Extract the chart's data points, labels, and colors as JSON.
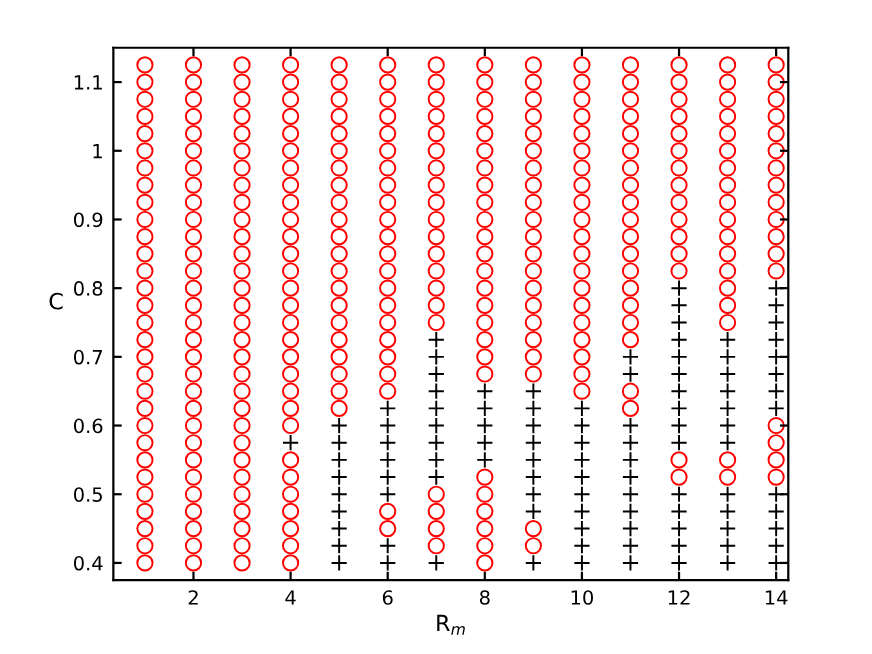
{
  "chart_data": {
    "type": "scatter",
    "xlabel": "R$_{m}$",
    "ylabel": "C",
    "xlim": [
      0.35,
      14.25
    ],
    "ylim": [
      0.375,
      1.15
    ],
    "xticks": [
      2,
      4,
      6,
      8,
      10,
      12,
      14
    ],
    "yticks": [
      0.4,
      0.5,
      0.6,
      0.7,
      0.8,
      0.9,
      1,
      1.1
    ],
    "grid": false,
    "legend": false,
    "series": [
      {
        "color": "#ff0000",
        "marker": "circle",
        "x": [
          1,
          1,
          1,
          1,
          1,
          1,
          1,
          1,
          1,
          1,
          1,
          1,
          1,
          1,
          1,
          1,
          1,
          1,
          1,
          1,
          1,
          1,
          1,
          1,
          1,
          1,
          1,
          1,
          1,
          1,
          2,
          2,
          2,
          2,
          2,
          2,
          2,
          2,
          2,
          2,
          2,
          2,
          2,
          2,
          2,
          2,
          2,
          2,
          2,
          2,
          2,
          2,
          2,
          2,
          2,
          2,
          2,
          2,
          2,
          2,
          3,
          3,
          3,
          3,
          3,
          3,
          3,
          3,
          3,
          3,
          3,
          3,
          3,
          3,
          3,
          3,
          3,
          3,
          3,
          3,
          3,
          3,
          3,
          3,
          3,
          3,
          3,
          3,
          3,
          3,
          4,
          4,
          4,
          4,
          4,
          4,
          4,
          4,
          4,
          4,
          4,
          4,
          4,
          4,
          4,
          4,
          4,
          4,
          4,
          4,
          4,
          4,
          4,
          4,
          4,
          4,
          4,
          4,
          4,
          5,
          5,
          5,
          5,
          5,
          5,
          5,
          5,
          5,
          5,
          5,
          5,
          5,
          5,
          5,
          5,
          5,
          5,
          5,
          5,
          5,
          6,
          6,
          6,
          6,
          6,
          6,
          6,
          6,
          6,
          6,
          6,
          6,
          6,
          6,
          6,
          6,
          6,
          6,
          6,
          6,
          6,
          6,
          7,
          7,
          7,
          7,
          7,
          7,
          7,
          7,
          7,
          7,
          7,
          7,
          7,
          7,
          7,
          7,
          7,
          7,
          7,
          7,
          8,
          8,
          8,
          8,
          8,
          8,
          8,
          8,
          8,
          8,
          8,
          8,
          8,
          8,
          8,
          8,
          8,
          8,
          8,
          8,
          8,
          8,
          8,
          8,
          8,
          9,
          9,
          9,
          9,
          9,
          9,
          9,
          9,
          9,
          9,
          9,
          9,
          9,
          9,
          9,
          9,
          9,
          9,
          9,
          9,
          9,
          10,
          10,
          10,
          10,
          10,
          10,
          10,
          10,
          10,
          10,
          10,
          10,
          10,
          10,
          10,
          10,
          10,
          10,
          10,
          10,
          11,
          11,
          11,
          11,
          11,
          11,
          11,
          11,
          11,
          11,
          11,
          11,
          11,
          11,
          11,
          11,
          11,
          11,
          11,
          12,
          12,
          12,
          12,
          12,
          12,
          12,
          12,
          12,
          12,
          12,
          12,
          12,
          12,
          12,
          13,
          13,
          13,
          13,
          13,
          13,
          13,
          13,
          13,
          13,
          13,
          13,
          13,
          13,
          13,
          13,
          13,
          13,
          14,
          14,
          14,
          14,
          14,
          14,
          14,
          14,
          14,
          14,
          14,
          14,
          14,
          14,
          14,
          14,
          14
        ],
        "values": [
          0.4,
          0.425,
          0.45,
          0.475,
          0.5,
          0.525,
          0.55,
          0.575,
          0.6,
          0.625,
          0.65,
          0.675,
          0.7,
          0.725,
          0.75,
          0.775,
          0.8,
          0.825,
          0.85,
          0.875,
          0.9,
          0.925,
          0.95,
          0.975,
          1,
          1.025,
          1.05,
          1.075,
          1.1,
          1.125,
          0.4,
          0.425,
          0.45,
          0.475,
          0.5,
          0.525,
          0.55,
          0.575,
          0.6,
          0.625,
          0.65,
          0.675,
          0.7,
          0.725,
          0.75,
          0.775,
          0.8,
          0.825,
          0.85,
          0.875,
          0.9,
          0.925,
          0.95,
          0.975,
          1,
          1.025,
          1.05,
          1.075,
          1.1,
          1.125,
          0.4,
          0.425,
          0.45,
          0.475,
          0.5,
          0.525,
          0.55,
          0.575,
          0.6,
          0.625,
          0.65,
          0.675,
          0.7,
          0.725,
          0.75,
          0.775,
          0.8,
          0.825,
          0.85,
          0.875,
          0.9,
          0.925,
          0.95,
          0.975,
          1,
          1.025,
          1.05,
          1.075,
          1.1,
          1.125,
          0.4,
          0.425,
          0.45,
          0.475,
          0.5,
          0.525,
          0.55,
          0.6,
          0.625,
          0.65,
          0.675,
          0.7,
          0.725,
          0.75,
          0.775,
          0.8,
          0.825,
          0.85,
          0.875,
          0.9,
          0.925,
          0.95,
          0.975,
          1,
          1.025,
          1.05,
          1.075,
          1.1,
          1.125,
          0.625,
          0.65,
          0.675,
          0.7,
          0.725,
          0.75,
          0.775,
          0.8,
          0.825,
          0.85,
          0.875,
          0.9,
          0.925,
          0.95,
          0.975,
          1,
          1.025,
          1.05,
          1.075,
          1.1,
          1.125,
          0.45,
          0.475,
          0.65,
          0.675,
          0.7,
          0.725,
          0.75,
          0.775,
          0.8,
          0.825,
          0.85,
          0.875,
          0.9,
          0.925,
          0.95,
          0.975,
          1,
          1.025,
          1.05,
          1.075,
          1.1,
          1.125,
          0.425,
          0.45,
          0.475,
          0.5,
          0.75,
          0.775,
          0.8,
          0.825,
          0.85,
          0.875,
          0.9,
          0.925,
          0.95,
          0.975,
          1,
          1.025,
          1.05,
          1.075,
          1.1,
          1.125,
          0.4,
          0.425,
          0.45,
          0.475,
          0.5,
          0.525,
          0.675,
          0.7,
          0.725,
          0.75,
          0.775,
          0.8,
          0.825,
          0.85,
          0.875,
          0.9,
          0.925,
          0.95,
          0.975,
          1,
          1.025,
          1.05,
          1.075,
          1.1,
          1.125,
          0.425,
          0.45,
          0.675,
          0.7,
          0.725,
          0.75,
          0.775,
          0.8,
          0.825,
          0.85,
          0.875,
          0.9,
          0.925,
          0.95,
          0.975,
          1,
          1.025,
          1.05,
          1.075,
          1.1,
          1.125,
          0.65,
          0.675,
          0.7,
          0.725,
          0.75,
          0.775,
          0.8,
          0.825,
          0.85,
          0.875,
          0.9,
          0.925,
          0.95,
          0.975,
          1,
          1.025,
          1.05,
          1.075,
          1.1,
          1.125,
          0.625,
          0.65,
          0.725,
          0.75,
          0.775,
          0.8,
          0.825,
          0.85,
          0.875,
          0.9,
          0.925,
          0.95,
          0.975,
          1,
          1.025,
          1.05,
          1.075,
          1.1,
          1.125,
          0.525,
          0.55,
          0.825,
          0.85,
          0.875,
          0.9,
          0.925,
          0.95,
          0.975,
          1,
          1.025,
          1.05,
          1.075,
          1.1,
          1.125,
          0.525,
          0.55,
          0.75,
          0.775,
          0.8,
          0.825,
          0.85,
          0.875,
          0.9,
          0.925,
          0.95,
          0.975,
          1,
          1.025,
          1.05,
          1.075,
          1.1,
          1.125,
          0.525,
          0.55,
          0.575,
          0.6,
          0.825,
          0.85,
          0.875,
          0.9,
          0.925,
          0.95,
          0.975,
          1,
          1.025,
          1.05,
          1.075,
          1.1,
          1.125
        ]
      },
      {
        "color": "#000000",
        "marker": "cross",
        "x": [
          4,
          5,
          5,
          5,
          5,
          5,
          5,
          5,
          5,
          5,
          6,
          6,
          6,
          6,
          6,
          6,
          6,
          6,
          7,
          7,
          7,
          7,
          7,
          7,
          7,
          7,
          7,
          7,
          8,
          8,
          8,
          8,
          8,
          9,
          9,
          9,
          9,
          9,
          9,
          9,
          9,
          9,
          10,
          10,
          10,
          10,
          10,
          10,
          10,
          10,
          10,
          10,
          11,
          11,
          11,
          11,
          11,
          11,
          11,
          11,
          11,
          11,
          11,
          12,
          12,
          12,
          12,
          12,
          12,
          12,
          12,
          12,
          12,
          12,
          12,
          12,
          12,
          12,
          13,
          13,
          13,
          13,
          13,
          13,
          13,
          13,
          13,
          13,
          13,
          13,
          14,
          14,
          14,
          14,
          14,
          14,
          14,
          14,
          14,
          14,
          14,
          14,
          14
        ],
        "values": [
          0.575,
          0.4,
          0.425,
          0.45,
          0.475,
          0.5,
          0.525,
          0.55,
          0.575,
          0.6,
          0.4,
          0.425,
          0.5,
          0.525,
          0.55,
          0.575,
          0.6,
          0.625,
          0.4,
          0.525,
          0.55,
          0.575,
          0.6,
          0.625,
          0.65,
          0.675,
          0.7,
          0.725,
          0.55,
          0.575,
          0.6,
          0.625,
          0.65,
          0.4,
          0.475,
          0.5,
          0.525,
          0.55,
          0.575,
          0.6,
          0.625,
          0.65,
          0.4,
          0.425,
          0.45,
          0.475,
          0.5,
          0.525,
          0.55,
          0.575,
          0.6,
          0.625,
          0.4,
          0.425,
          0.45,
          0.475,
          0.5,
          0.525,
          0.55,
          0.575,
          0.6,
          0.675,
          0.7,
          0.4,
          0.425,
          0.45,
          0.475,
          0.5,
          0.575,
          0.6,
          0.625,
          0.65,
          0.675,
          0.7,
          0.725,
          0.75,
          0.775,
          0.8,
          0.4,
          0.425,
          0.45,
          0.475,
          0.5,
          0.575,
          0.6,
          0.625,
          0.65,
          0.675,
          0.7,
          0.725,
          0.4,
          0.425,
          0.45,
          0.475,
          0.5,
          0.625,
          0.65,
          0.675,
          0.7,
          0.725,
          0.75,
          0.775,
          0.8
        ]
      }
    ]
  }
}
